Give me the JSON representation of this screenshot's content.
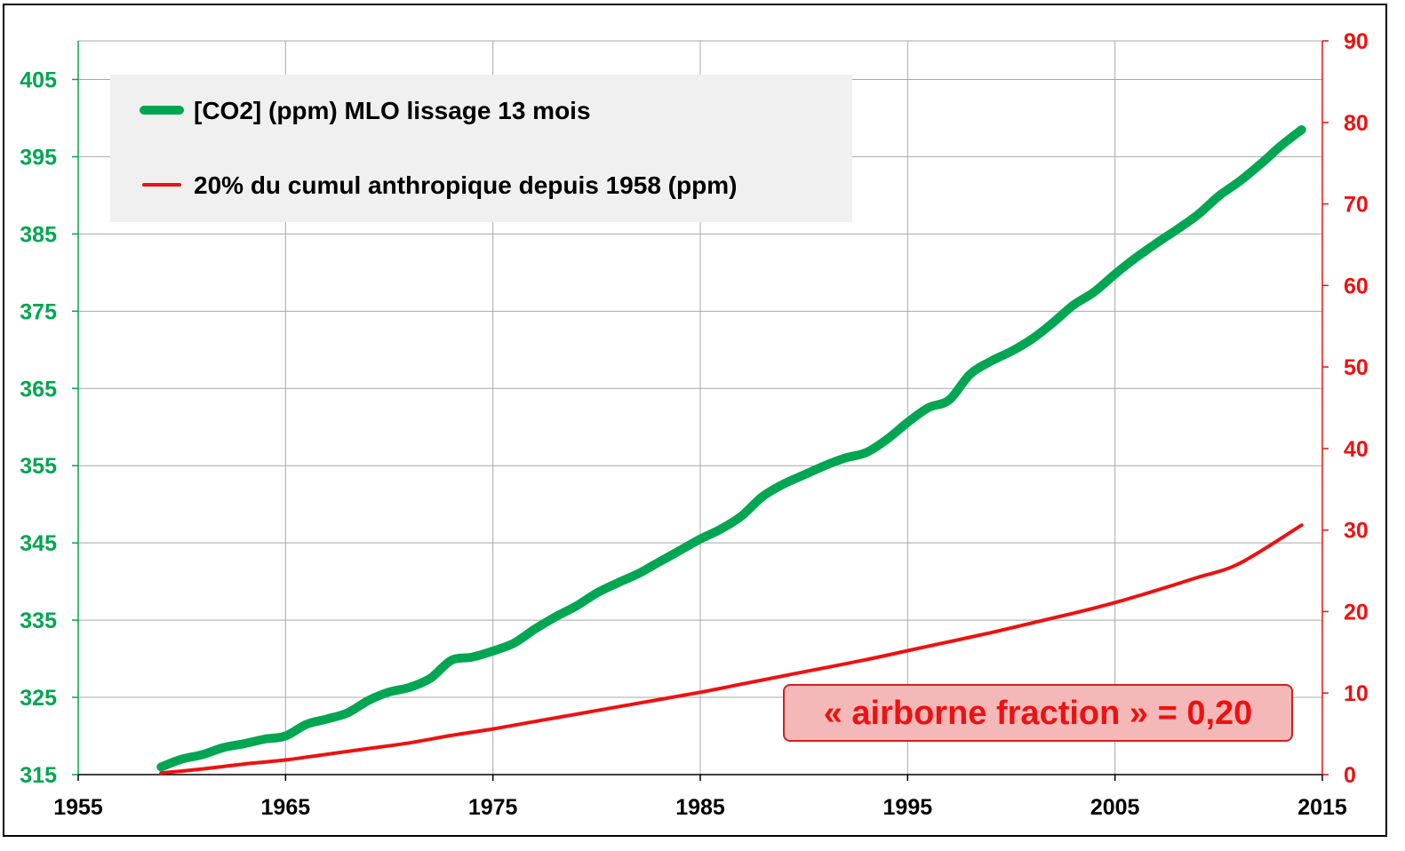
{
  "colors": {
    "co2": "#00a651",
    "cumul": "#ee1111",
    "grid": "#a8a8a8",
    "legend_bg": "#f0f0f0",
    "annotation_bg": "#f4b8b8",
    "annotation_border": "#d32020",
    "annotation_text": "#ee1111"
  },
  "legend": {
    "co2_label": "[CO2] (ppm) MLO lissage 13 mois",
    "cumul_label": "20%  du cumul anthropique depuis 1958 (ppm)"
  },
  "annotation": {
    "text": "« airborne fraction » = 0,20"
  },
  "chart_data": {
    "type": "line",
    "title": "",
    "xlabel": "",
    "ylabel": "",
    "xlim": [
      1955,
      2015
    ],
    "ylim": [
      315,
      410
    ],
    "y2lim": [
      0,
      90
    ],
    "grid": true,
    "legend_position": "top-left",
    "x_ticks": [
      "1955",
      "1965",
      "1975",
      "1985",
      "1995",
      "2005",
      "2015"
    ],
    "y_ticks": [
      "315",
      "325",
      "335",
      "345",
      "355",
      "365",
      "375",
      "385",
      "395",
      "405"
    ],
    "y2_ticks": [
      "0",
      "10",
      "20",
      "30",
      "40",
      "50",
      "60",
      "70",
      "80",
      "90"
    ],
    "series": [
      {
        "name": "[CO2] (ppm) MLO lissage 13 mois",
        "axis": "left",
        "x": [
          1959,
          1960,
          1961,
          1962,
          1963,
          1964,
          1965,
          1966,
          1967,
          1968,
          1969,
          1970,
          1971,
          1972,
          1973,
          1974,
          1975,
          1976,
          1977,
          1978,
          1979,
          1980,
          1981,
          1982,
          1983,
          1984,
          1985,
          1986,
          1987,
          1988,
          1989,
          1990,
          1991,
          1992,
          1993,
          1994,
          1995,
          1996,
          1997,
          1998,
          1999,
          2000,
          2001,
          2002,
          2003,
          2004,
          2005,
          2006,
          2007,
          2008,
          2009,
          2010,
          2011,
          2012,
          2013,
          2014
        ],
        "y": [
          316.0,
          317.0,
          317.6,
          318.5,
          319.0,
          319.6,
          320.0,
          321.5,
          322.2,
          323.0,
          324.6,
          325.7,
          326.3,
          327.5,
          329.8,
          330.2,
          331.0,
          332.0,
          333.8,
          335.4,
          336.8,
          338.5,
          339.8,
          341.0,
          342.5,
          344.0,
          345.5,
          346.8,
          348.5,
          351.0,
          352.6,
          353.8,
          355.0,
          356.0,
          356.7,
          358.4,
          360.6,
          362.5,
          363.5,
          366.8,
          368.5,
          369.8,
          371.4,
          373.5,
          375.8,
          377.5,
          379.8,
          381.9,
          383.8,
          385.6,
          387.5,
          389.9,
          391.8,
          394.0,
          396.4,
          398.5
        ]
      },
      {
        "name": "20%  du cumul anthropique depuis 1958 (ppm)",
        "axis": "right",
        "x": [
          1959,
          1961,
          1963,
          1965,
          1967,
          1969,
          1971,
          1973,
          1975,
          1977,
          1979,
          1981,
          1983,
          1985,
          1987,
          1989,
          1991,
          1993,
          1995,
          1997,
          1999,
          2001,
          2003,
          2005,
          2007,
          2009,
          2011,
          2014
        ],
        "y": [
          0.2,
          0.7,
          1.3,
          1.8,
          2.5,
          3.2,
          3.9,
          4.8,
          5.6,
          6.5,
          7.4,
          8.3,
          9.2,
          10.1,
          11.1,
          12.1,
          13.1,
          14.1,
          15.2,
          16.3,
          17.4,
          18.6,
          19.8,
          21.1,
          22.6,
          24.2,
          25.9,
          30.6
        ]
      }
    ]
  }
}
